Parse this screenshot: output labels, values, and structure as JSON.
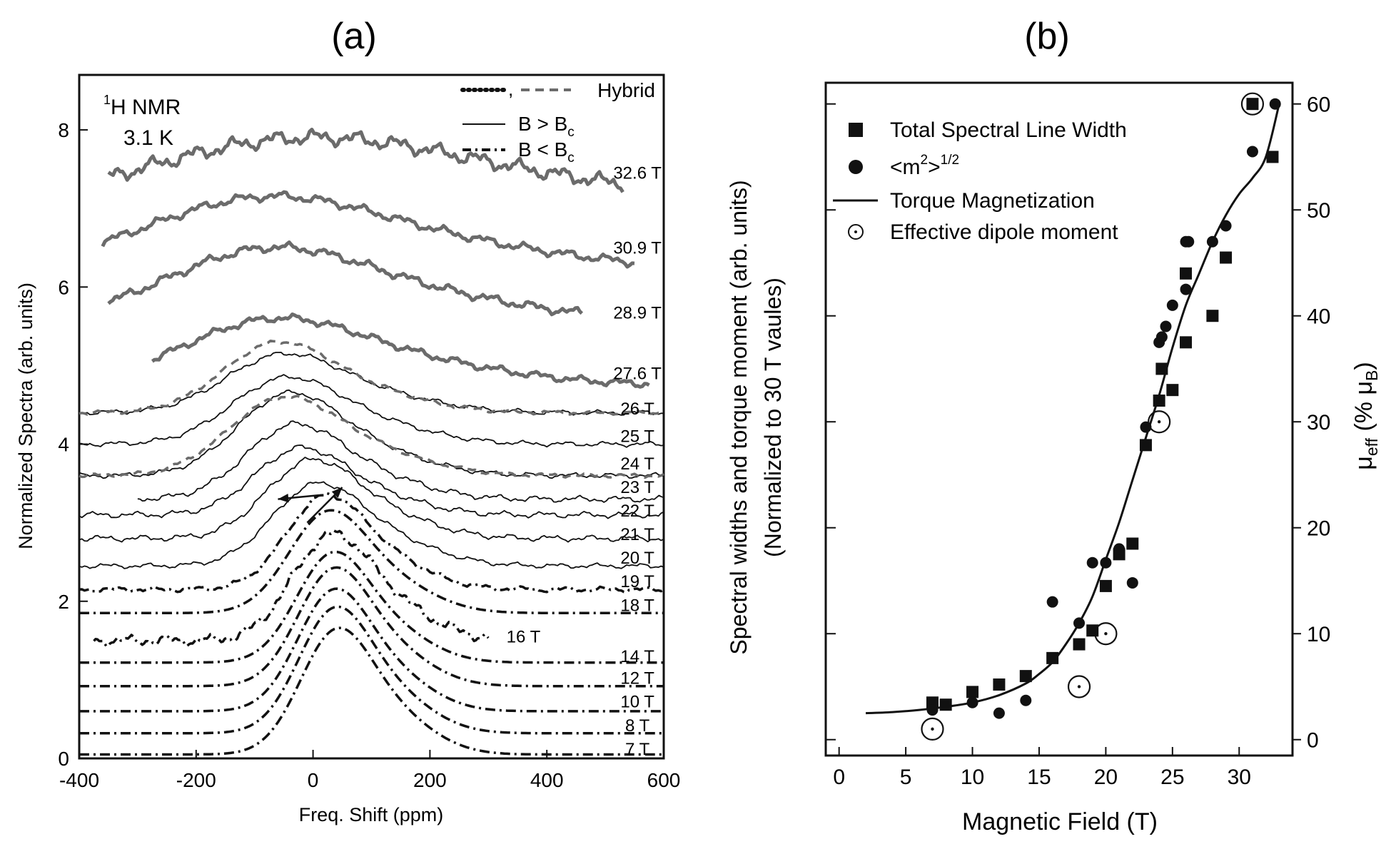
{
  "figure_labels": [
    "(a)",
    "(b)"
  ],
  "colors": {
    "ink": "#111111",
    "hybrid_gray": "#6b6b6b"
  },
  "chart_data": [
    {
      "type": "line",
      "panel": "(a)",
      "title": "(a)",
      "xlabel": "Freq. Shift (ppm)",
      "ylabel": "Normalized Spectra (arb. units)",
      "xlim": [
        -400,
        600
      ],
      "ylim": [
        0,
        8.7
      ],
      "xticks": [
        -400,
        -200,
        0,
        200,
        400,
        600
      ],
      "yticks": [
        0,
        2,
        4,
        6,
        8
      ],
      "annotation": {
        "nucleus": "1",
        "nucleus_rest": "H NMR",
        "temperature": "3.1 K"
      },
      "legend": {
        "placement": "top-right",
        "entries": [
          {
            "line": "dotted",
            "sep": ",",
            "line2": "dashed",
            "label": "Hybrid"
          },
          {
            "line": "solid",
            "label": "B > B",
            "sub": "c"
          },
          {
            "line": "dashdot",
            "label": "B < B",
            "sub": "c"
          }
        ]
      },
      "series": [
        {
          "name": "7 T",
          "baseline": 0.05,
          "x0": -400,
          "x1": 600,
          "center": 35,
          "width": 60,
          "amp": 1.6,
          "style": "dashdot",
          "noise": 0
        },
        {
          "name": "8 T",
          "baseline": 0.32,
          "x0": -400,
          "x1": 600,
          "center": 32,
          "width": 60,
          "amp": 1.6,
          "style": "dashdot",
          "noise": 0
        },
        {
          "name": "10 T",
          "baseline": 0.6,
          "x0": -400,
          "x1": 600,
          "center": 30,
          "width": 60,
          "amp": 1.55,
          "style": "dashdot",
          "noise": 0
        },
        {
          "name": "12 T",
          "baseline": 0.92,
          "x0": -400,
          "x1": 600,
          "center": 30,
          "width": 60,
          "amp": 1.5,
          "style": "dashdot",
          "noise": 0
        },
        {
          "name": "14 T",
          "baseline": 1.22,
          "x0": -400,
          "x1": 600,
          "center": 28,
          "width": 60,
          "amp": 1.4,
          "style": "dashdot",
          "noise": 0
        },
        {
          "name": "16 T",
          "baseline": 1.5,
          "x0": -375,
          "x1": 300,
          "center": 25,
          "width": 65,
          "amp": 1.35,
          "style": "dashdot",
          "noise": 0.04
        },
        {
          "name": "18 T",
          "baseline": 1.85,
          "x0": -400,
          "x1": 600,
          "center": 20,
          "width": 65,
          "amp": 1.3,
          "style": "dashdot",
          "noise": 0
        },
        {
          "name": "19 T",
          "baseline": 2.15,
          "x0": -400,
          "x1": 600,
          "center": 15,
          "width": 65,
          "amp": 1.2,
          "style": "dashdot",
          "noise": 0.02
        },
        {
          "name": "20 T",
          "baseline": 2.45,
          "x0": -400,
          "x1": 600,
          "center": 0,
          "width": 75,
          "amp": 1.05,
          "style": "solid",
          "noise": 0.02
        },
        {
          "name": "21 T",
          "baseline": 2.8,
          "x0": -400,
          "x1": 600,
          "center": -10,
          "width": 75,
          "amp": 1.0,
          "style": "solid",
          "noise": 0.025
        },
        {
          "name": "22 T",
          "baseline": 3.1,
          "x0": -400,
          "x1": 600,
          "center": -30,
          "width": 75,
          "amp": 0.85,
          "style": "solid",
          "noise": 0.025
        },
        {
          "name": "23 T",
          "baseline": 3.3,
          "x0": -300,
          "x1": 600,
          "center": -40,
          "width": 80,
          "amp": 0.95,
          "style": "solid",
          "noise": 0.025
        },
        {
          "name": "24 T",
          "baseline": 3.6,
          "x0": -400,
          "x1": 600,
          "center": -50,
          "width": 85,
          "amp": 1.05,
          "style": "solid",
          "noise": 0.02
        },
        {
          "name": "25 T",
          "baseline": 4.0,
          "x0": -400,
          "x1": 600,
          "center": -55,
          "width": 90,
          "amp": 0.85,
          "style": "solid",
          "noise": 0.02
        },
        {
          "name": "26 T",
          "baseline": 4.4,
          "x0": -400,
          "x1": 600,
          "center": -60,
          "width": 95,
          "amp": 0.75,
          "style": "solid",
          "noise": 0.02
        },
        {
          "name": "26 T hybrid",
          "baseline": 4.4,
          "x0": -400,
          "x1": 600,
          "center": -70,
          "width": 90,
          "amp": 0.9,
          "style": "hybrid-dash",
          "noise": 0.015
        },
        {
          "name": "24 T hybrid",
          "baseline": 3.6,
          "x0": -400,
          "x1": 600,
          "center": -60,
          "width": 90,
          "amp": 1.0,
          "style": "hybrid-dash",
          "noise": 0.015
        },
        {
          "name": "27.6 T",
          "baseline": 4.75,
          "x0": -275,
          "x1": 575,
          "center": -80,
          "width": 150,
          "amp": 0.85,
          "style": "hybrid-thick",
          "noise": 0.03
        },
        {
          "name": "28.9 T",
          "baseline": 5.55,
          "x0": -350,
          "x1": 460,
          "center": -90,
          "width": 170,
          "amp": 0.95,
          "style": "hybrid-thick",
          "noise": 0.035
        },
        {
          "name": "30.9 T",
          "baseline": 6.2,
          "x0": -360,
          "x1": 550,
          "center": -100,
          "width": 200,
          "amp": 0.95,
          "style": "hybrid-thick",
          "noise": 0.035
        },
        {
          "name": "32.6 T",
          "baseline": 7.0,
          "x0": -350,
          "x1": 530,
          "center": -40,
          "width": 260,
          "amp": 0.9,
          "style": "hybrid-thick",
          "noise": 0.06
        }
      ],
      "curve_labels": [
        {
          "text": "32.6 T",
          "x": 555,
          "y": 7.45
        },
        {
          "text": "30.9 T",
          "x": 555,
          "y": 6.5
        },
        {
          "text": "28.9 T",
          "x": 555,
          "y": 5.67
        },
        {
          "text": "27.6 T",
          "x": 555,
          "y": 4.9
        },
        {
          "text": "26 T",
          "x": 555,
          "y": 4.45
        },
        {
          "text": "25 T",
          "x": 555,
          "y": 4.1
        },
        {
          "text": "24 T",
          "x": 555,
          "y": 3.75
        },
        {
          "text": "23 T",
          "x": 555,
          "y": 3.45
        },
        {
          "text": "22 T",
          "x": 555,
          "y": 3.15
        },
        {
          "text": "21 T",
          "x": 555,
          "y": 2.85
        },
        {
          "text": "20 T",
          "x": 555,
          "y": 2.55
        },
        {
          "text": "19 T",
          "x": 555,
          "y": 2.25
        },
        {
          "text": "18 T",
          "x": 555,
          "y": 1.95
        },
        {
          "text": "16 T",
          "x": 360,
          "y": 1.55
        },
        {
          "text": "14 T",
          "x": 555,
          "y": 1.3
        },
        {
          "text": "12 T",
          "x": 555,
          "y": 1.02
        },
        {
          "text": "10 T",
          "x": 555,
          "y": 0.72
        },
        {
          "text": "8 T",
          "x": 555,
          "y": 0.42
        },
        {
          "text": "7 T",
          "x": 555,
          "y": 0.12
        }
      ],
      "arrows": [
        {
          "from": [
            10,
            3.35
          ],
          "to": [
            -60,
            3.3
          ]
        },
        {
          "from": [
            -10,
            3.0
          ],
          "to": [
            50,
            3.45
          ]
        }
      ]
    },
    {
      "type": "scatter",
      "panel": "(b)",
      "title": "(b)",
      "xlabel": "Magnetic Field (T)",
      "ylabel": "Spectral widths and torque moment (arb. units)",
      "ylabel2": "(Normalized to 30 T vaules)",
      "y2label": "μ",
      "y2label_sub": "eff",
      "y2label_rest": " (% μ",
      "y2label_sub2": "B",
      "y2label_end": ")",
      "xlim": [
        -1,
        34
      ],
      "ylim": [
        -1.5,
        62
      ],
      "xticks": [
        0,
        5,
        10,
        15,
        20,
        25,
        30
      ],
      "y2ticks": [
        0,
        10,
        20,
        30,
        40,
        50,
        60
      ],
      "legend": {
        "placement": "top-left",
        "entries": [
          {
            "marker": "square",
            "label": "Total Spectral Line Width"
          },
          {
            "marker": "circle",
            "label": "<m",
            "sup": "2",
            "label_mid": ">",
            "sup2": "1/2"
          },
          {
            "marker": "line",
            "label": "Torque Magnetization"
          },
          {
            "marker": "dotcircle",
            "label": "Effective dipole moment"
          }
        ]
      },
      "series": [
        {
          "name": "Total Spectral Line Width",
          "marker": "square",
          "x": [
            7,
            8,
            10,
            12,
            14,
            16,
            18,
            19,
            20,
            21,
            22,
            23,
            24,
            24.2,
            25,
            26,
            26,
            28,
            29,
            31,
            32.5
          ],
          "y": [
            3.5,
            3.3,
            4.5,
            5.2,
            6,
            7.7,
            9,
            10.3,
            14.5,
            17.5,
            18.5,
            27.8,
            32,
            35,
            33,
            44,
            37.5,
            40,
            45.5,
            60,
            55
          ]
        },
        {
          "name": "<m^2>^1/2",
          "marker": "circle",
          "x": [
            7,
            10,
            12,
            14,
            16,
            18,
            19,
            20,
            21,
            22,
            23,
            24,
            24.2,
            24.5,
            25,
            26,
            26,
            26.2,
            28,
            29,
            31,
            32.7
          ],
          "y": [
            2.8,
            3.5,
            2.5,
            3.7,
            13,
            11,
            16.7,
            16.7,
            18,
            14.8,
            29.5,
            37.5,
            38,
            39,
            41,
            42.5,
            47,
            47,
            47,
            48.5,
            55.5,
            60
          ]
        },
        {
          "name": "Torque Magnetization",
          "marker": "line",
          "x": [
            2,
            4,
            6,
            8,
            10,
            12,
            14,
            15,
            16,
            17,
            18,
            19,
            20,
            21,
            22,
            23,
            24,
            25,
            26,
            27,
            28,
            29,
            30,
            31,
            32,
            33
          ],
          "y": [
            2.5,
            2.6,
            2.8,
            3.1,
            3.5,
            4.2,
            5.3,
            6.2,
            7.3,
            9,
            11,
            13.5,
            17,
            20.5,
            24.5,
            28.5,
            32.5,
            37,
            41,
            44,
            47,
            49.5,
            51.5,
            53,
            55,
            60
          ]
        },
        {
          "name": "Effective dipole moment",
          "marker": "dotcircle",
          "x": [
            7,
            18,
            20,
            24,
            31
          ],
          "y": [
            1,
            5,
            10,
            30,
            60
          ]
        }
      ]
    }
  ]
}
